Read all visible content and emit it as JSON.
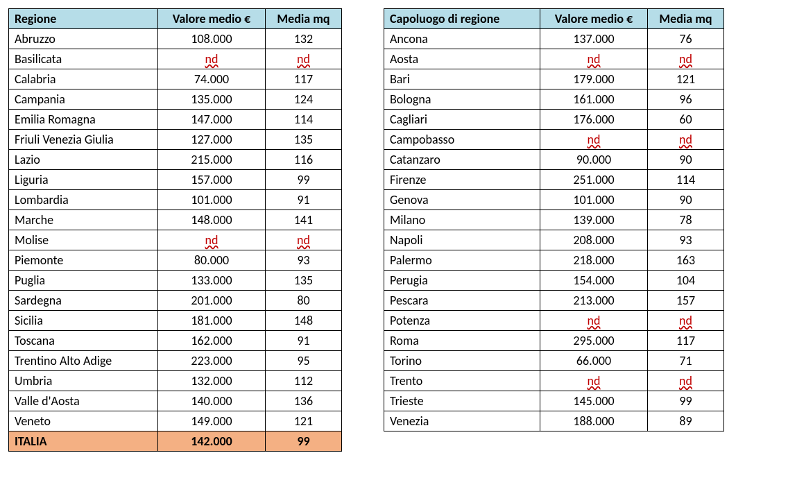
{
  "tables": {
    "left": {
      "headers": [
        "Regione",
        "Valore medio €",
        "Media mq"
      ],
      "col_align": [
        "left",
        "center",
        "center"
      ],
      "header_bg": "#b6dde8",
      "total_bg": "#f4b083",
      "nd_color": "#c00000",
      "rows": [
        {
          "name": "Abruzzo",
          "val": "108.000",
          "mq": "132"
        },
        {
          "name": "Basilicata",
          "val": "nd",
          "mq": "nd",
          "nd": true
        },
        {
          "name": "Calabria",
          "val": "74.000",
          "mq": "117"
        },
        {
          "name": "Campania",
          "val": "135.000",
          "mq": "124"
        },
        {
          "name": "Emilia Romagna",
          "val": "147.000",
          "mq": "114"
        },
        {
          "name": "Friuli Venezia Giulia",
          "val": "127.000",
          "mq": "135"
        },
        {
          "name": "Lazio",
          "val": "215.000",
          "mq": "116"
        },
        {
          "name": "Liguria",
          "val": "157.000",
          "mq": "99"
        },
        {
          "name": "Lombardia",
          "val": "101.000",
          "mq": "91"
        },
        {
          "name": "Marche",
          "val": "148.000",
          "mq": "141"
        },
        {
          "name": "Molise",
          "val": "nd",
          "mq": "nd",
          "nd": true
        },
        {
          "name": "Piemonte",
          "val": "80.000",
          "mq": "93"
        },
        {
          "name": "Puglia",
          "val": "133.000",
          "mq": "135"
        },
        {
          "name": "Sardegna",
          "val": "201.000",
          "mq": "80"
        },
        {
          "name": "Sicilia",
          "val": "181.000",
          "mq": "148"
        },
        {
          "name": "Toscana",
          "val": "162.000",
          "mq": "91"
        },
        {
          "name": "Trentino Alto Adige",
          "val": "223.000",
          "mq": "95"
        },
        {
          "name": "Umbria",
          "val": "132.000",
          "mq": "112"
        },
        {
          "name": "Valle d'Aosta",
          "val": "140.000",
          "mq": "136"
        },
        {
          "name": "Veneto",
          "val": "149.000",
          "mq": "121"
        }
      ],
      "total": {
        "name": "ITALIA",
        "val": "142.000",
        "mq": "99"
      }
    },
    "right": {
      "headers": [
        "Capoluogo di regione",
        "Valore medio €",
        "Media mq"
      ],
      "col_align": [
        "left",
        "center",
        "center"
      ],
      "header_bg": "#b6dde8",
      "nd_color": "#c00000",
      "rows": [
        {
          "name": "Ancona",
          "val": "137.000",
          "mq": "76"
        },
        {
          "name": "Aosta",
          "val": "nd",
          "mq": "nd",
          "nd": true
        },
        {
          "name": "Bari",
          "val": "179.000",
          "mq": "121"
        },
        {
          "name": "Bologna",
          "val": "161.000",
          "mq": "96"
        },
        {
          "name": "Cagliari",
          "val": "176.000",
          "mq": "60"
        },
        {
          "name": "Campobasso",
          "val": "nd",
          "mq": "nd",
          "nd": true
        },
        {
          "name": "Catanzaro",
          "val": "90.000",
          "mq": "90"
        },
        {
          "name": "Firenze",
          "val": "251.000",
          "mq": "114"
        },
        {
          "name": "Genova",
          "val": "101.000",
          "mq": "90"
        },
        {
          "name": "Milano",
          "val": "139.000",
          "mq": "78"
        },
        {
          "name": "Napoli",
          "val": "208.000",
          "mq": "93"
        },
        {
          "name": "Palermo",
          "val": "218.000",
          "mq": "163"
        },
        {
          "name": "Perugia",
          "val": "154.000",
          "mq": "104"
        },
        {
          "name": "Pescara",
          "val": "213.000",
          "mq": "157"
        },
        {
          "name": "Potenza",
          "val": "nd",
          "mq": "nd",
          "nd": true
        },
        {
          "name": "Roma",
          "val": "295.000",
          "mq": "117"
        },
        {
          "name": "Torino",
          "val": "66.000",
          "mq": "71"
        },
        {
          "name": "Trento",
          "val": "nd",
          "mq": "nd",
          "nd": true
        },
        {
          "name": "Trieste",
          "val": "145.000",
          "mq": "99"
        },
        {
          "name": "Venezia",
          "val": "188.000",
          "mq": "89"
        }
      ]
    }
  }
}
